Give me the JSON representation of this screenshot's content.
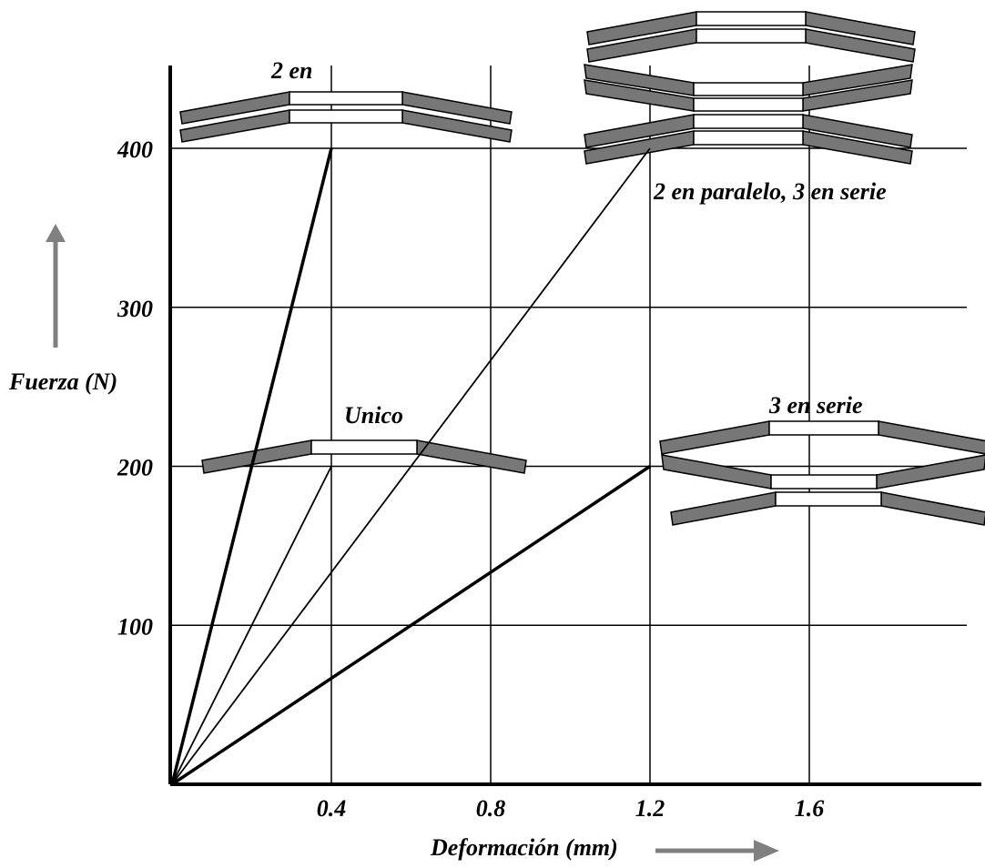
{
  "chart_data": {
    "type": "line",
    "title": "",
    "xlabel": "Deformación (mm)",
    "ylabel": "Fuerza (N)",
    "xlim": [
      0,
      2.0
    ],
    "ylim": [
      0,
      400
    ],
    "xticks": [
      0.4,
      0.8,
      1.2,
      1.6
    ],
    "xtick_labels": [
      "0.4",
      "0.8",
      "1.2",
      "1.6"
    ],
    "yticks": [
      100,
      200,
      300,
      400
    ],
    "ytick_labels": [
      "100",
      "200",
      "300",
      "400"
    ],
    "grid": true,
    "series": [
      {
        "name": "2 en",
        "x": [
          0,
          0.4
        ],
        "y": [
          0,
          400
        ],
        "bold": true
      },
      {
        "name": "Unico",
        "x": [
          0,
          0.4
        ],
        "y": [
          0,
          200
        ],
        "bold": false
      },
      {
        "name": "2 en paralelo, 3 en serie",
        "x": [
          0,
          1.2
        ],
        "y": [
          0,
          400
        ],
        "bold": false
      },
      {
        "name": "3 en serie",
        "x": [
          0,
          1.2
        ],
        "y": [
          0,
          200
        ],
        "bold": true
      }
    ],
    "annotations": [
      {
        "id": "label-2en",
        "text": "2 en"
      },
      {
        "id": "label-unico",
        "text": "Unico"
      },
      {
        "id": "label-2par3ser",
        "text": "2 en paralelo, 3 en serie"
      },
      {
        "id": "label-3serie",
        "text": "3 en serie"
      }
    ]
  },
  "colors": {
    "spring_fill": "#777777",
    "line": "#000000",
    "arrow": "#808080"
  }
}
